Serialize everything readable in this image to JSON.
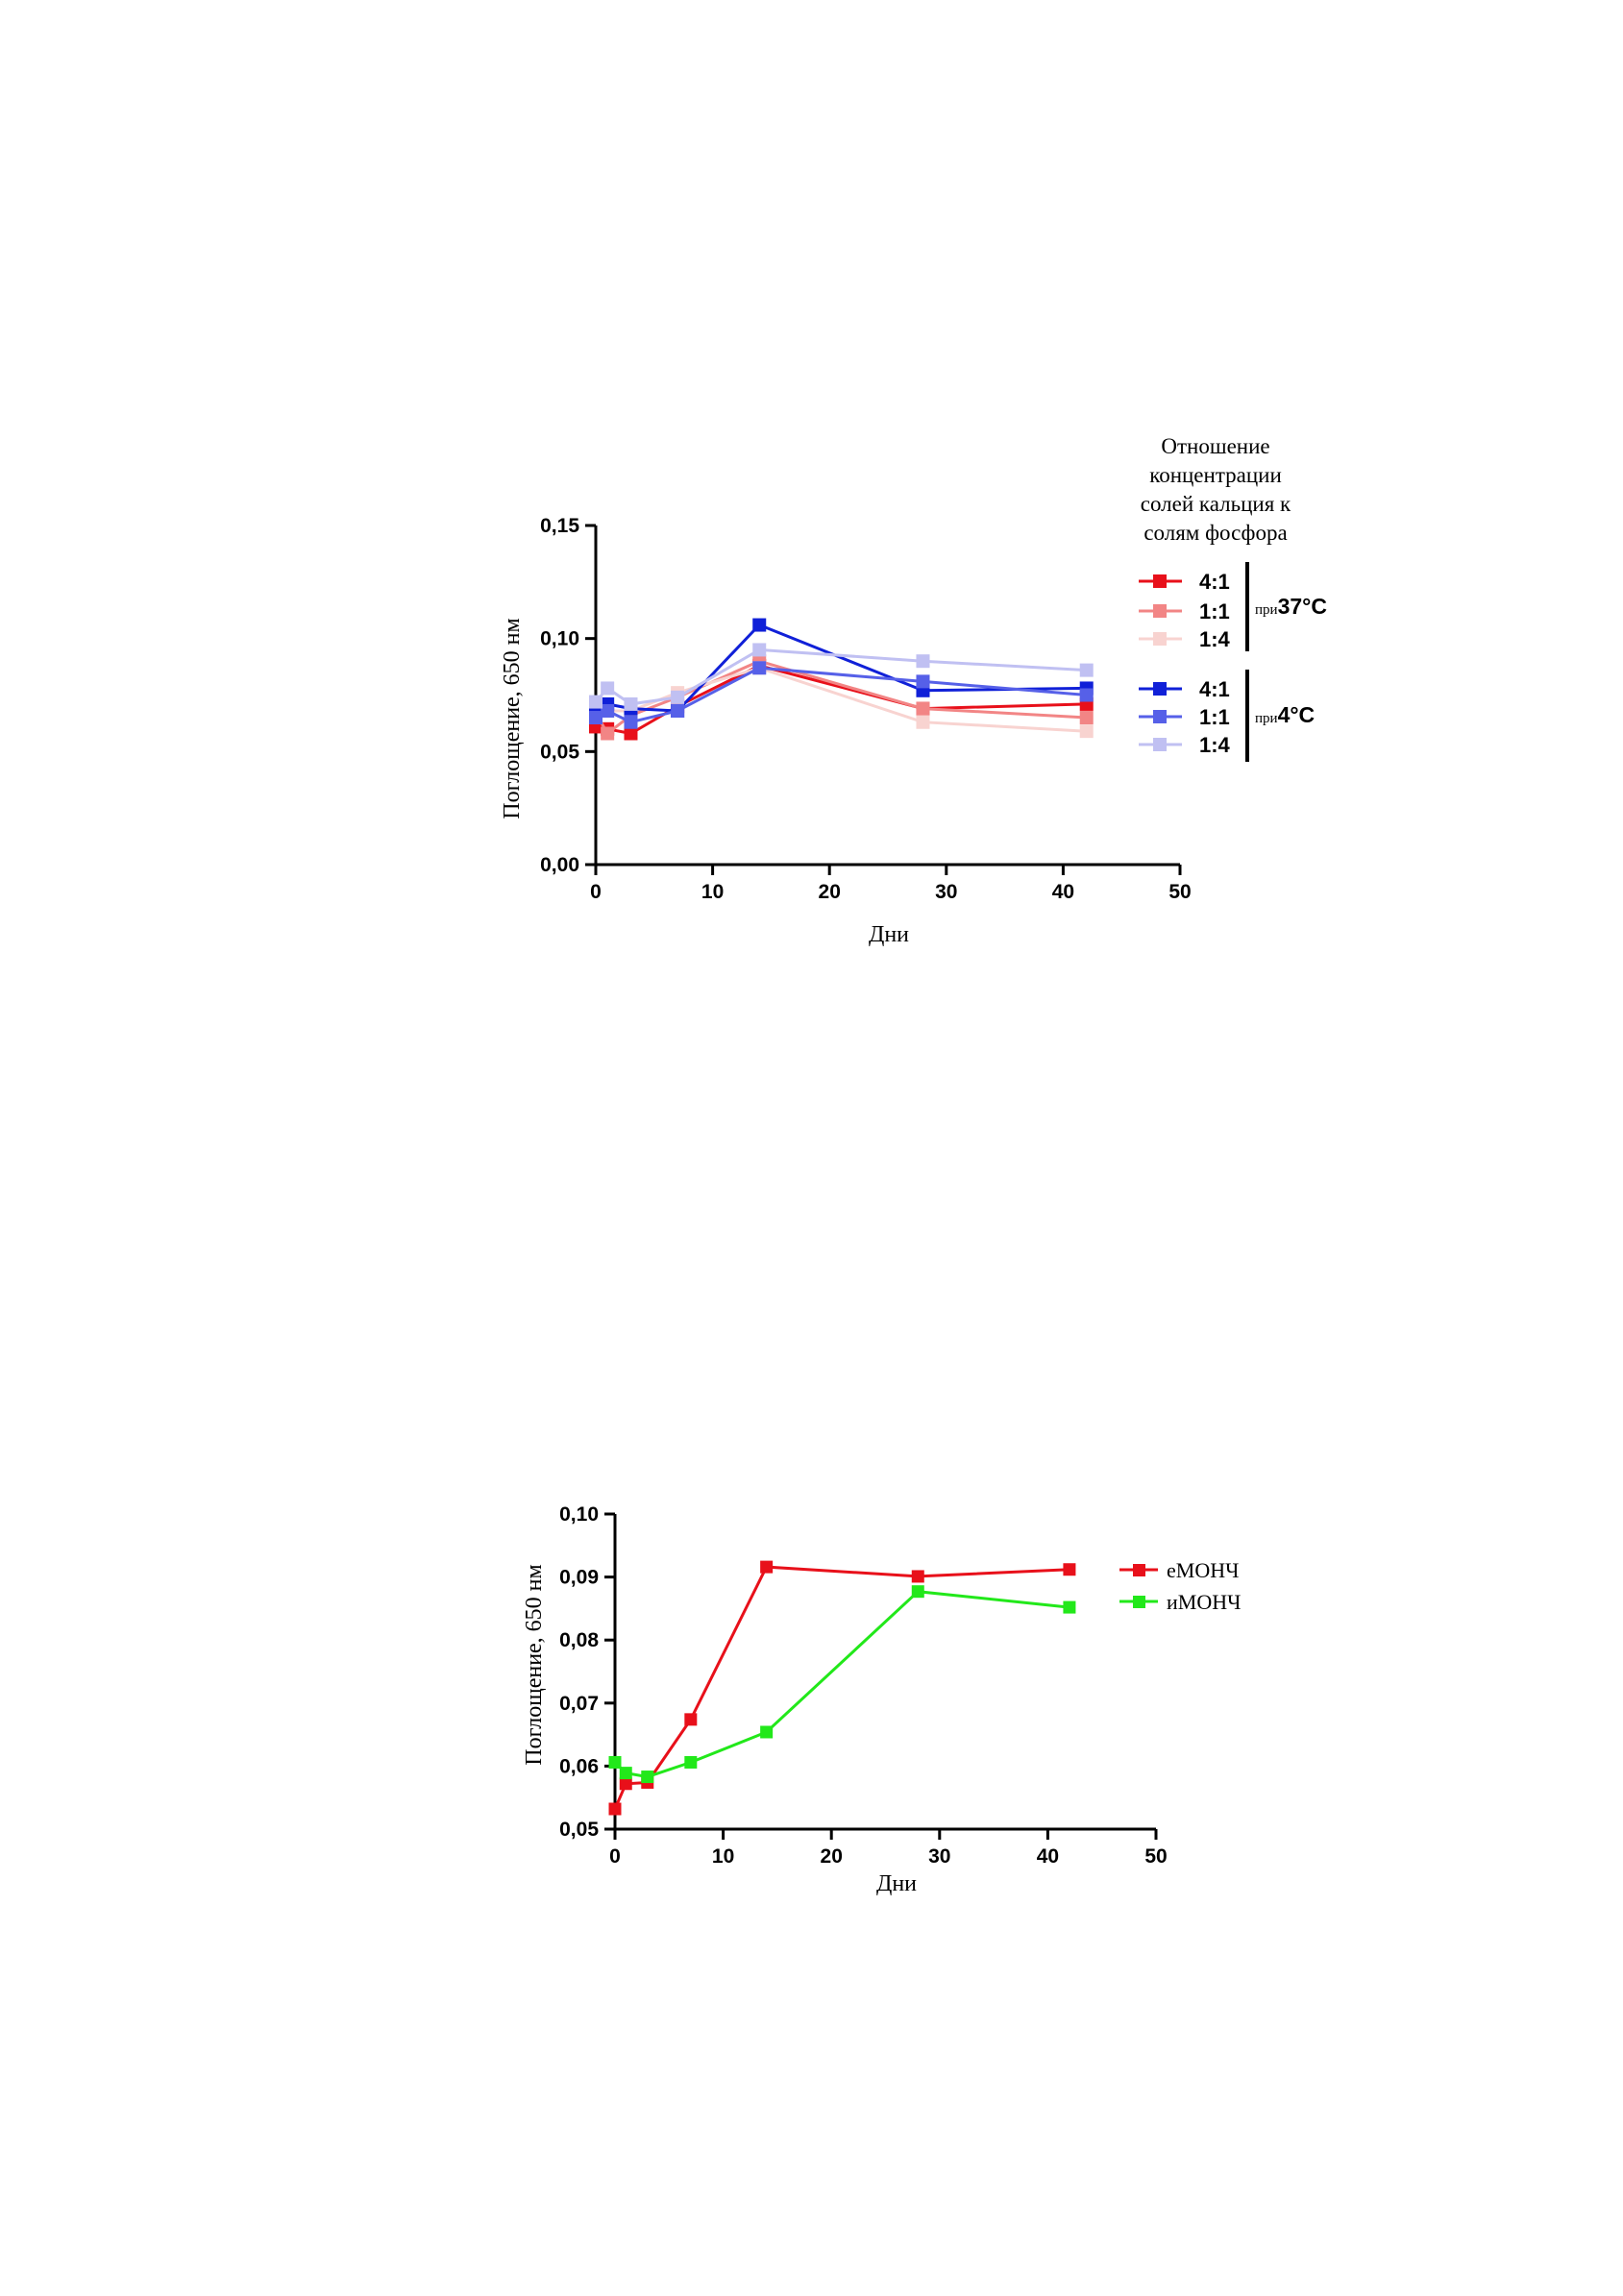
{
  "chart_data": [
    {
      "type": "line",
      "title": "",
      "xlabel": "Дни",
      "ylabel": "Поглощение, 650 нм",
      "xlim": [
        0,
        50
      ],
      "ylim": [
        0,
        0.15
      ],
      "x_ticks": [
        "0",
        "10",
        "20",
        "30",
        "40",
        "50"
      ],
      "y_ticks": [
        "0,00",
        "0,05",
        "0,10",
        "0,15"
      ],
      "grid": false,
      "legend_title": [
        "Отношение",
        "концентрации",
        "солей кальция к",
        "солям фосфора"
      ],
      "legend_position": "right",
      "groups": [
        {
          "prefix": "при",
          "label": "37°C",
          "series_labels": [
            "4:1",
            "1:1",
            "1:4"
          ]
        },
        {
          "prefix": "при",
          "label": "4°C",
          "series_labels": [
            "4:1",
            "1:1",
            "1:4"
          ]
        }
      ],
      "series": [
        {
          "name": "4:1",
          "group": "37°C",
          "color": "#e8101a",
          "x": [
            0,
            1,
            3,
            7,
            14,
            28,
            42
          ],
          "y": [
            0.061,
            0.06,
            0.058,
            0.07,
            0.088,
            0.069,
            0.071
          ]
        },
        {
          "name": "1:1",
          "group": "37°C",
          "color": "#f28585",
          "x": [
            0,
            1,
            3,
            7,
            14,
            28,
            42
          ],
          "y": [
            0.067,
            0.058,
            0.066,
            0.074,
            0.09,
            0.069,
            0.065
          ]
        },
        {
          "name": "1:4",
          "group": "37°C",
          "color": "#f8d3d0",
          "x": [
            0,
            1,
            3,
            7,
            14,
            28,
            42
          ],
          "y": [
            0.066,
            0.068,
            0.068,
            0.076,
            0.087,
            0.063,
            0.059
          ]
        },
        {
          "name": "4:1",
          "group": "4°C",
          "color": "#1020d8",
          "x": [
            0,
            1,
            3,
            7,
            14,
            28,
            42
          ],
          "y": [
            0.069,
            0.071,
            0.069,
            0.068,
            0.106,
            0.077,
            0.078
          ]
        },
        {
          "name": "1:1",
          "group": "4°C",
          "color": "#5660e8",
          "x": [
            0,
            1,
            3,
            7,
            14,
            28,
            42
          ],
          "y": [
            0.065,
            0.068,
            0.063,
            0.068,
            0.087,
            0.081,
            0.075
          ]
        },
        {
          "name": "1:4",
          "group": "4°C",
          "color": "#c0c0f2",
          "x": [
            0,
            1,
            3,
            7,
            14,
            28,
            42
          ],
          "y": [
            0.072,
            0.078,
            0.071,
            0.074,
            0.095,
            0.09,
            0.086
          ]
        }
      ]
    },
    {
      "type": "line",
      "title": "",
      "xlabel": "Дни",
      "ylabel": "Поглощение, 650 нм",
      "xlim": [
        0,
        50
      ],
      "ylim": [
        0.05,
        0.1
      ],
      "x_ticks": [
        "0",
        "10",
        "20",
        "30",
        "40",
        "50"
      ],
      "y_ticks": [
        "0,05",
        "0,06",
        "0,07",
        "0,08",
        "0,09",
        "0,10"
      ],
      "grid": false,
      "legend_position": "top-right",
      "series": [
        {
          "name": "еМОНЧ",
          "color": "#e8101a",
          "x": [
            0,
            1,
            3,
            7,
            14,
            28,
            42
          ],
          "y": [
            0.0532,
            0.0572,
            0.0574,
            0.0674,
            0.0916,
            0.0901,
            0.0912
          ]
        },
        {
          "name": "иМОНЧ",
          "color": "#22e81a",
          "x": [
            0,
            1,
            3,
            7,
            14,
            28,
            42
          ],
          "y": [
            0.0606,
            0.0589,
            0.0583,
            0.0606,
            0.0654,
            0.0877,
            0.0852
          ]
        }
      ]
    }
  ]
}
